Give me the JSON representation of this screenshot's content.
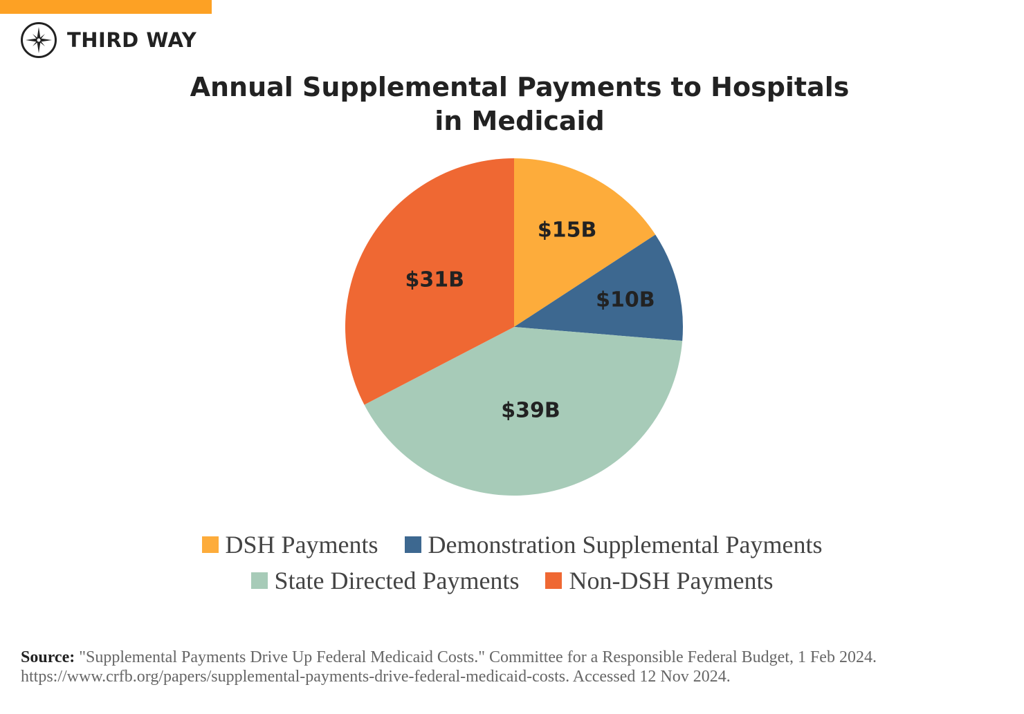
{
  "brand": {
    "name": "THIRD WAY",
    "bar_color": "#fda124"
  },
  "chart_data": {
    "type": "pie",
    "title": "Annual Supplemental Payments to Hospitals in Medicaid",
    "title_lines": [
      "Annual Supplemental Payments to Hospitals",
      "in Medicaid"
    ],
    "units": "billions USD",
    "start": "top, clockwise",
    "slices": [
      {
        "name": "DSH Payments",
        "value": 15,
        "label": "$15B",
        "color": "#fdac3b"
      },
      {
        "name": "Demonstration Supplemental Payments",
        "value": 10,
        "label": "$10B",
        "color": "#3d6890"
      },
      {
        "name": "State Directed Payments",
        "value": 39,
        "label": "$39B",
        "color": "#a7cbb8"
      },
      {
        "name": "Non-DSH Payments",
        "value": 31,
        "label": "$31B",
        "color": "#ef6833"
      }
    ],
    "legend_position": "bottom"
  },
  "source": {
    "label": "Source:",
    "text": "\"Supplemental Payments Drive Up Federal Medicaid Costs.\" Committee for a Responsible Federal Budget, 1 Feb 2024. https://www.crfb.org/papers/supplemental-payments-drive-federal-medicaid-costs. Accessed 12 Nov 2024."
  }
}
